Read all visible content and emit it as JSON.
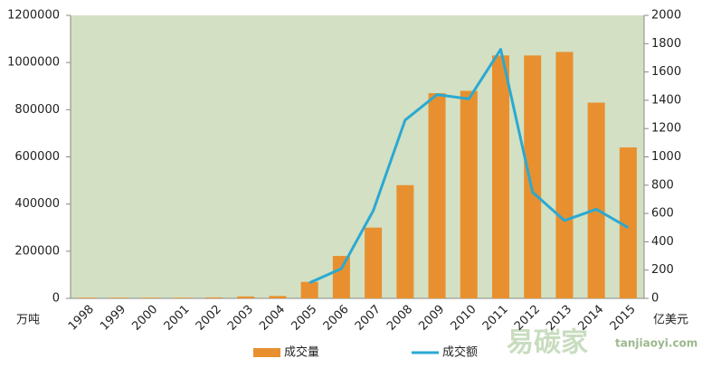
{
  "chart_data": {
    "type": "bar",
    "categories": [
      "1998",
      "1999",
      "2000",
      "2001",
      "2002",
      "2003",
      "2004",
      "2005",
      "2006",
      "2007",
      "2008",
      "2009",
      "2010",
      "2011",
      "2012",
      "2013",
      "2014",
      "2015"
    ],
    "series": [
      {
        "name": "成交量",
        "type": "bar",
        "color": "#e8902f",
        "values": [
          3000,
          3000,
          3000,
          3000,
          4000,
          8000,
          10000,
          70000,
          180000,
          300000,
          480000,
          870000,
          880000,
          1030000,
          1030000,
          1045000,
          830000,
          640000
        ]
      },
      {
        "name": "成交额",
        "type": "line",
        "axis": "y2",
        "color": "#2aa9d2",
        "values": [
          null,
          null,
          null,
          null,
          null,
          null,
          null,
          110,
          210,
          620,
          1260,
          1440,
          1410,
          1760,
          750,
          550,
          630,
          500
        ]
      }
    ],
    "ylabel": "万吨",
    "y2label": "亿美元",
    "ylim": [
      0,
      1200000
    ],
    "yticks": [
      0,
      200000,
      400000,
      600000,
      800000,
      1000000,
      1200000
    ],
    "y2lim": [
      0,
      2000
    ],
    "y2ticks": [
      0,
      200,
      400,
      600,
      800,
      1000,
      1200,
      1400,
      1600,
      1800,
      2000
    ],
    "plot_background": "#d3e0c3",
    "legend": "bottom",
    "watermark": [
      "易碳家",
      "tanjiaoyi.com"
    ]
  }
}
